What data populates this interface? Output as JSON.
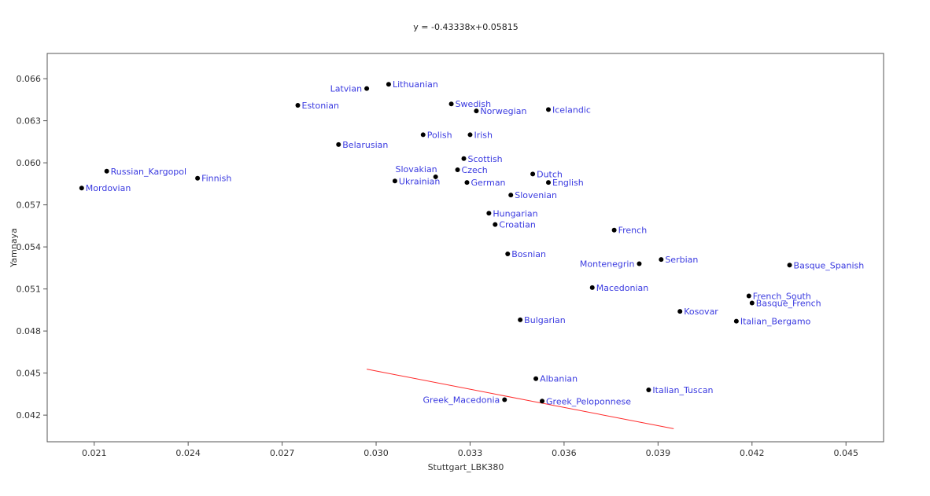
{
  "chart_data": {
    "type": "scatter",
    "title": "y = -0.43338x+0.05815",
    "xlabel": "Stuttgart_LBK380",
    "ylabel": "Yamnaya",
    "xlim": [
      0.0195,
      0.0462
    ],
    "ylim": [
      0.0401,
      0.0678
    ],
    "x_ticks": [
      0.021,
      0.024,
      0.027,
      0.03,
      0.033,
      0.036,
      0.039,
      0.042,
      0.045
    ],
    "x_tick_labels": [
      "0.021",
      "0.024",
      "0.027",
      "0.030",
      "0.033",
      "0.036",
      "0.039",
      "0.042",
      "0.045"
    ],
    "y_ticks": [
      0.042,
      0.045,
      0.048,
      0.051,
      0.054,
      0.057,
      0.06,
      0.063,
      0.066
    ],
    "y_tick_labels": [
      "0.042",
      "0.045",
      "0.048",
      "0.051",
      "0.054",
      "0.057",
      "0.060",
      "0.063",
      "0.066"
    ],
    "grid": false,
    "label_color": "#3a3ae0",
    "point_color": "#000000",
    "trendline": {
      "slope": -0.43338,
      "intercept": 0.05815,
      "x_range": [
        0.0297,
        0.0395
      ],
      "color": "#ff2a2a"
    },
    "points": [
      {
        "name": "Latvian",
        "x": 0.0297,
        "y": 0.0653,
        "side": "left"
      },
      {
        "name": "Lithuanian",
        "x": 0.0304,
        "y": 0.0656,
        "side": "right"
      },
      {
        "name": "Estonian",
        "x": 0.0275,
        "y": 0.0641,
        "side": "right"
      },
      {
        "name": "Swedish",
        "x": 0.0324,
        "y": 0.0642,
        "side": "right"
      },
      {
        "name": "Norwegian",
        "x": 0.0332,
        "y": 0.0637,
        "side": "right"
      },
      {
        "name": "Icelandic",
        "x": 0.0355,
        "y": 0.0638,
        "side": "right"
      },
      {
        "name": "Polish",
        "x": 0.0315,
        "y": 0.062,
        "side": "right"
      },
      {
        "name": "Irish",
        "x": 0.033,
        "y": 0.062,
        "side": "right"
      },
      {
        "name": "Belarusian",
        "x": 0.0288,
        "y": 0.0613,
        "side": "right"
      },
      {
        "name": "Scottish",
        "x": 0.0328,
        "y": 0.0603,
        "side": "right"
      },
      {
        "name": "Russian_Kargopol",
        "x": 0.0214,
        "y": 0.0594,
        "side": "right"
      },
      {
        "name": "Finnish",
        "x": 0.0243,
        "y": 0.0589,
        "side": "right"
      },
      {
        "name": "Slovakian",
        "x": 0.0319,
        "y": 0.059,
        "side": "above-left"
      },
      {
        "name": "Czech",
        "x": 0.0326,
        "y": 0.0595,
        "side": "right"
      },
      {
        "name": "Dutch",
        "x": 0.035,
        "y": 0.0592,
        "side": "right"
      },
      {
        "name": "Ukrainian",
        "x": 0.0306,
        "y": 0.0587,
        "side": "right"
      },
      {
        "name": "German",
        "x": 0.0329,
        "y": 0.0586,
        "side": "right"
      },
      {
        "name": "English",
        "x": 0.0355,
        "y": 0.0586,
        "side": "right"
      },
      {
        "name": "Mordovian",
        "x": 0.0206,
        "y": 0.0582,
        "side": "right"
      },
      {
        "name": "Slovenian",
        "x": 0.0343,
        "y": 0.0577,
        "side": "right"
      },
      {
        "name": "Hungarian",
        "x": 0.0336,
        "y": 0.0564,
        "side": "right"
      },
      {
        "name": "Croatian",
        "x": 0.0338,
        "y": 0.0556,
        "side": "right"
      },
      {
        "name": "French",
        "x": 0.0376,
        "y": 0.0552,
        "side": "right"
      },
      {
        "name": "Bosnian",
        "x": 0.0342,
        "y": 0.0535,
        "side": "right"
      },
      {
        "name": "Serbian",
        "x": 0.0391,
        "y": 0.0531,
        "side": "right"
      },
      {
        "name": "Montenegrin",
        "x": 0.0384,
        "y": 0.0528,
        "side": "left"
      },
      {
        "name": "Basque_Spanish",
        "x": 0.0432,
        "y": 0.0527,
        "side": "right"
      },
      {
        "name": "Macedonian",
        "x": 0.0369,
        "y": 0.0511,
        "side": "right"
      },
      {
        "name": "French_South",
        "x": 0.0419,
        "y": 0.0505,
        "side": "right"
      },
      {
        "name": "Basque_French",
        "x": 0.042,
        "y": 0.05,
        "side": "right"
      },
      {
        "name": "Kosovar",
        "x": 0.0397,
        "y": 0.0494,
        "side": "right"
      },
      {
        "name": "Bulgarian",
        "x": 0.0346,
        "y": 0.0488,
        "side": "right"
      },
      {
        "name": "Italian_Bergamo",
        "x": 0.0415,
        "y": 0.0487,
        "side": "right"
      },
      {
        "name": "Albanian",
        "x": 0.0351,
        "y": 0.0446,
        "side": "right"
      },
      {
        "name": "Italian_Tuscan",
        "x": 0.0387,
        "y": 0.0438,
        "side": "right"
      },
      {
        "name": "Greek_Macedonia",
        "x": 0.0341,
        "y": 0.0431,
        "side": "left"
      },
      {
        "name": "Greek_Peloponnese",
        "x": 0.0353,
        "y": 0.043,
        "side": "right"
      }
    ]
  }
}
